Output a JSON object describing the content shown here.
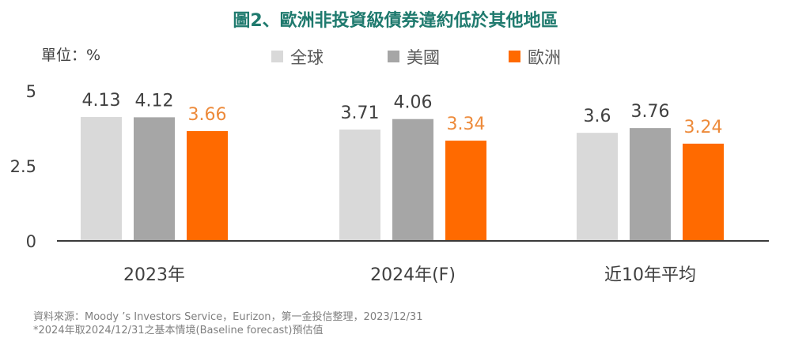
{
  "title": "圖2、歐洲非投資級債券違約低於其他地區",
  "unit": "單位：%",
  "footnotes": [
    "資料來源：Moody  ’s Investors Service，Eurizon，第一金投信整理，2023/12/31",
    "*2024年取2024/12/31之基本情境(Baseline forecast)預估值"
  ],
  "chart_data": {
    "type": "bar",
    "categories": [
      "2023年",
      "2024年(F)",
      "近10年平均"
    ],
    "series": [
      {
        "name": "全球",
        "values": [
          4.13,
          3.71,
          3.6
        ],
        "color": "#d9d9d9",
        "label_color": "#404040"
      },
      {
        "name": "美國",
        "values": [
          4.12,
          4.06,
          3.76
        ],
        "color": "#a6a6a6",
        "label_color": "#404040"
      },
      {
        "name": "歐洲",
        "values": [
          3.66,
          3.34,
          3.24
        ],
        "color": "#ff6a00",
        "label_color": "#ed8a3a"
      }
    ],
    "value_labels": [
      [
        "4.13",
        "3.71",
        "3.6"
      ],
      [
        "4.12",
        "4.06",
        "3.76"
      ],
      [
        "3.66",
        "3.34",
        "3.24"
      ]
    ],
    "ylim": [
      0,
      5
    ],
    "yticks": [
      "0",
      "2.5",
      "5"
    ],
    "grid": false,
    "legend": "top"
  }
}
